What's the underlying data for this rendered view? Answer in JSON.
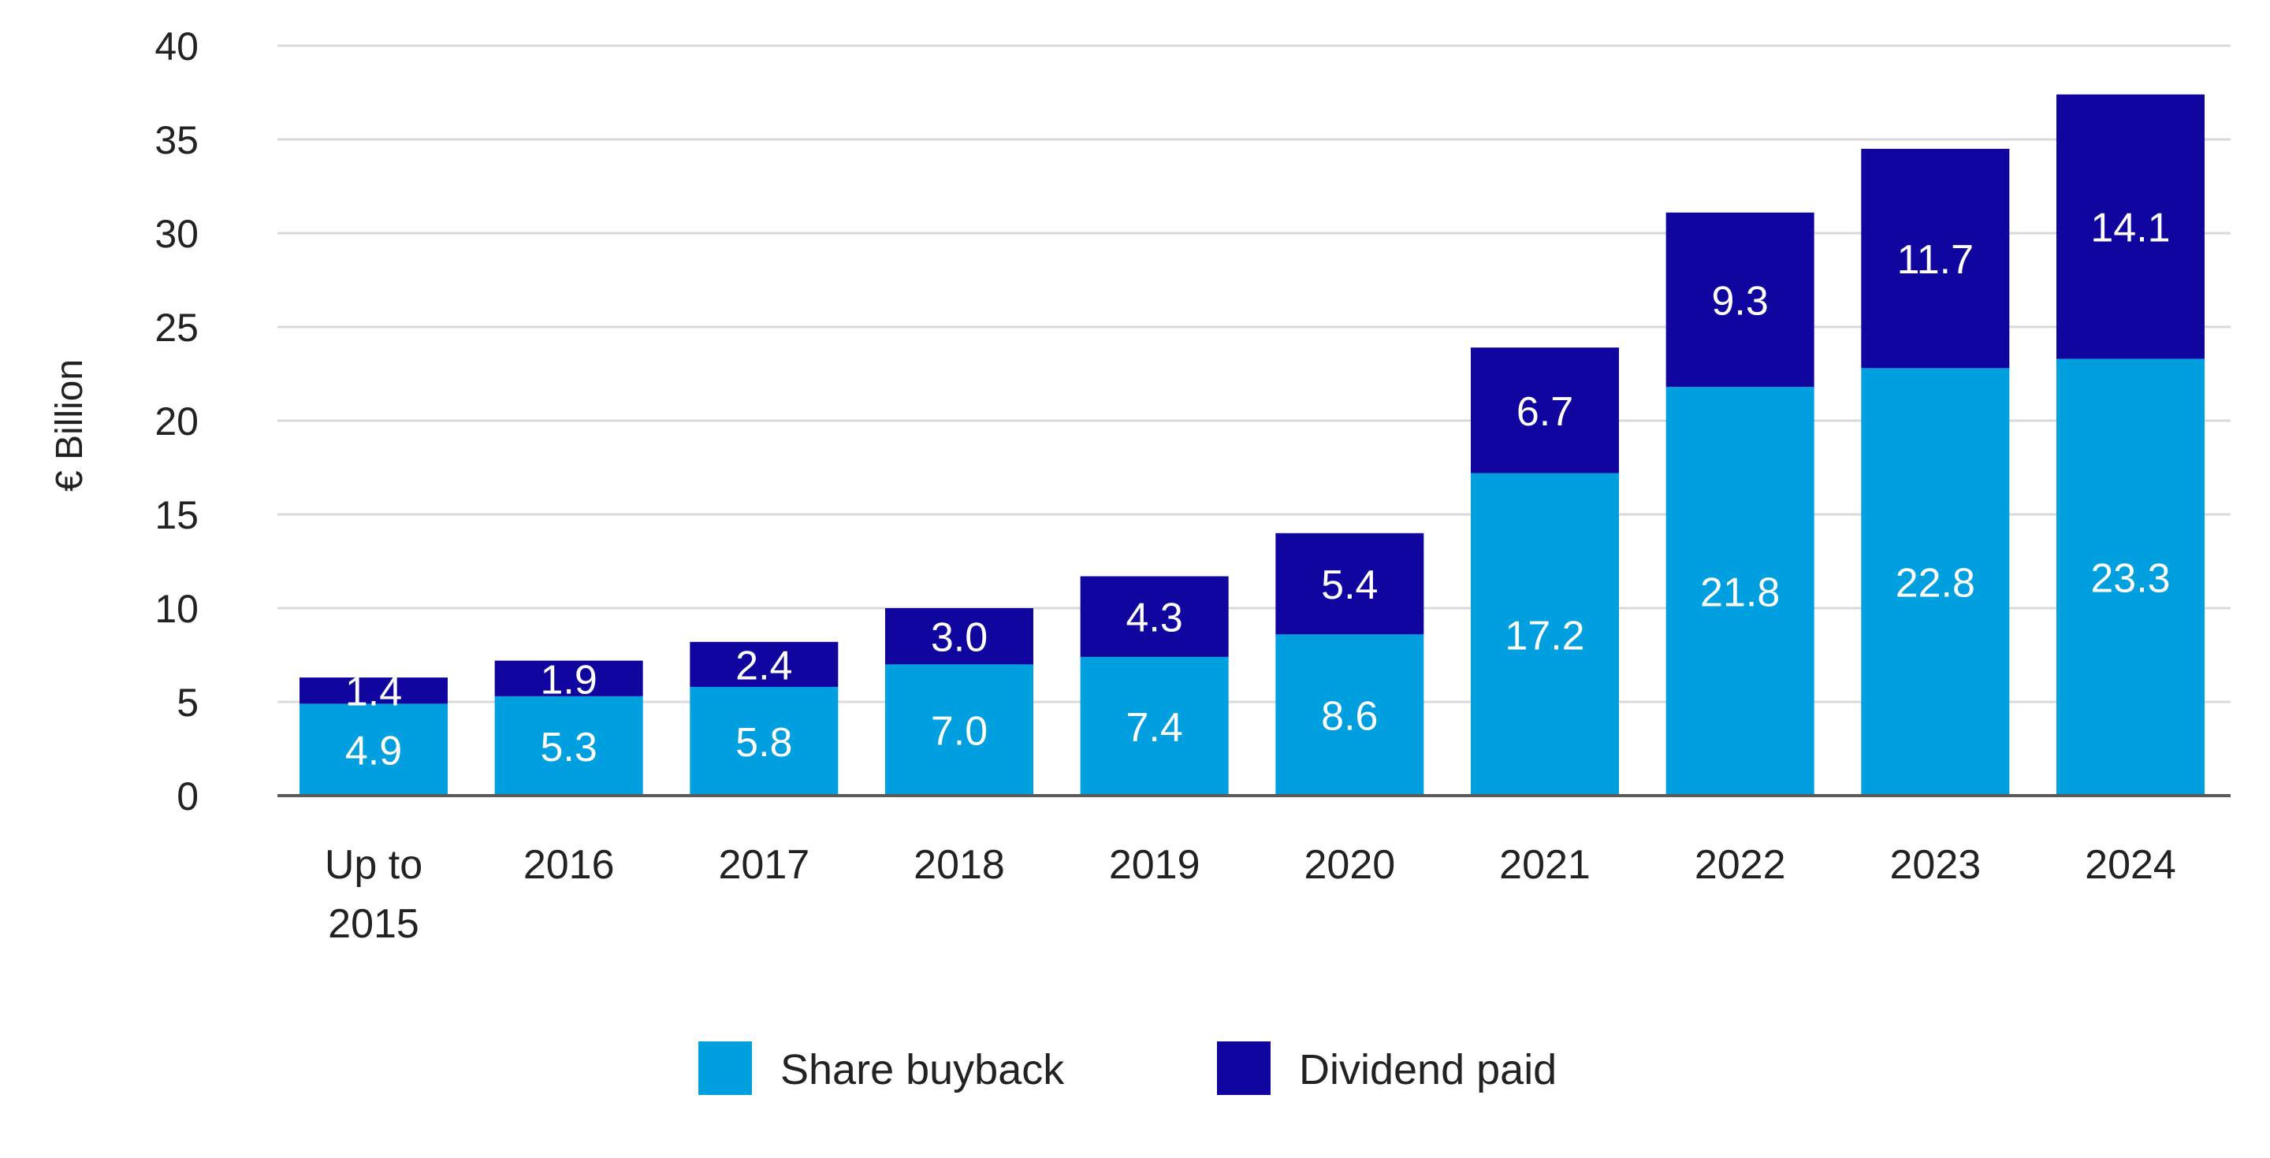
{
  "chart_data": {
    "type": "bar",
    "stacked": true,
    "ylabel": "€ Billion",
    "xlabel": "",
    "ylim": [
      0,
      40
    ],
    "yticks": [
      "0",
      "5",
      "10",
      "15",
      "20",
      "25",
      "30",
      "35",
      "40"
    ],
    "categories": [
      [
        "Up to",
        "2015"
      ],
      [
        "2016"
      ],
      [
        "2017"
      ],
      [
        "2018"
      ],
      [
        "2019"
      ],
      [
        "2020"
      ],
      [
        "2021"
      ],
      [
        "2022"
      ],
      [
        "2023"
      ],
      [
        "2024"
      ]
    ],
    "series": [
      {
        "name": "Share buyback",
        "color": "#009FDF",
        "values": [
          4.9,
          5.3,
          5.8,
          7.0,
          7.4,
          8.6,
          17.2,
          21.8,
          22.8,
          23.3
        ],
        "labels": [
          "4.9",
          "5.3",
          "5.8",
          "7.0",
          "7.4",
          "8.6",
          "17.2",
          "21.8",
          "22.8",
          "23.3"
        ]
      },
      {
        "name": "Dividend paid",
        "color": "#10069F",
        "values": [
          1.4,
          1.9,
          2.4,
          3.0,
          4.3,
          5.4,
          6.7,
          9.3,
          11.7,
          14.1
        ],
        "labels": [
          "1.4",
          "1.9",
          "2.4",
          "3.0",
          "4.3",
          "5.4",
          "6.7",
          "9.3",
          "11.7",
          "14.1"
        ]
      }
    ],
    "grid": true,
    "grid_color": "#D9D9D9",
    "axis_color": "#595959",
    "legend_position": "bottom-center"
  }
}
